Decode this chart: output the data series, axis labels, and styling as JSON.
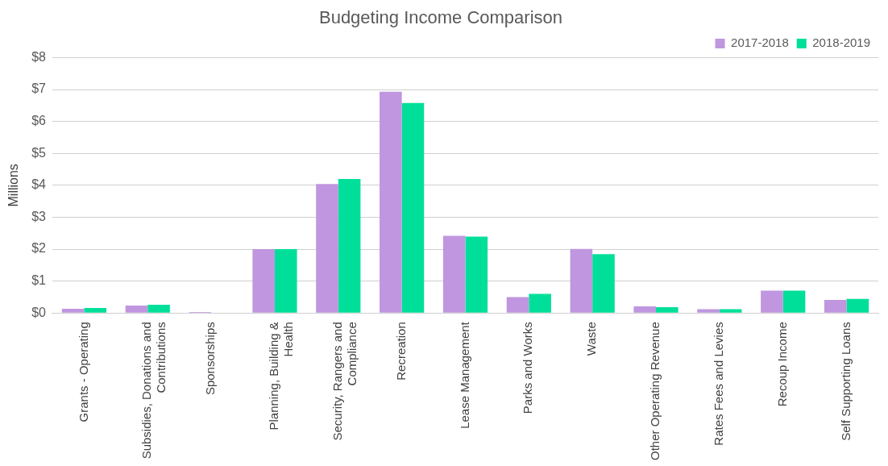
{
  "chart_data": {
    "type": "bar",
    "title": "Budgeting Income Comparison",
    "ylabel": "Millions",
    "categories": [
      "Grants - Operating",
      "Subsidies, Donations and Contributions",
      "Sponsorships",
      "Planning, Building & Health",
      "Security, Rangers and Compliance",
      "Recreation",
      "Lease Management",
      "Parks and Works",
      "Waste",
      "Other Operating Revenue",
      "Rates Fees and Levies",
      "Recoup Income",
      "Self Supporting Loans"
    ],
    "series": [
      {
        "name": "2017-2018",
        "color": "#bf96df",
        "values": [
          0.13,
          0.23,
          0.03,
          2.0,
          4.04,
          6.93,
          2.42,
          0.5,
          2.01,
          0.21,
          0.12,
          0.7,
          0.41
        ]
      },
      {
        "name": "2018-2019",
        "color": "#00df99",
        "values": [
          0.16,
          0.26,
          0,
          2.0,
          4.2,
          6.58,
          2.39,
          0.6,
          1.84,
          0.18,
          0.12,
          0.7,
          0.44
        ]
      }
    ],
    "ylim": [
      0,
      8
    ],
    "yticks": [
      {
        "value": 0,
        "label": "$0"
      },
      {
        "value": 1,
        "label": "$1"
      },
      {
        "value": 2,
        "label": "$2"
      },
      {
        "value": 3,
        "label": "$3"
      },
      {
        "value": 4,
        "label": "$4"
      },
      {
        "value": 5,
        "label": "$5"
      },
      {
        "value": 6,
        "label": "$6"
      },
      {
        "value": 7,
        "label": "$7"
      },
      {
        "value": 8,
        "label": "$8"
      }
    ],
    "grid": "y",
    "legend": "top right"
  }
}
